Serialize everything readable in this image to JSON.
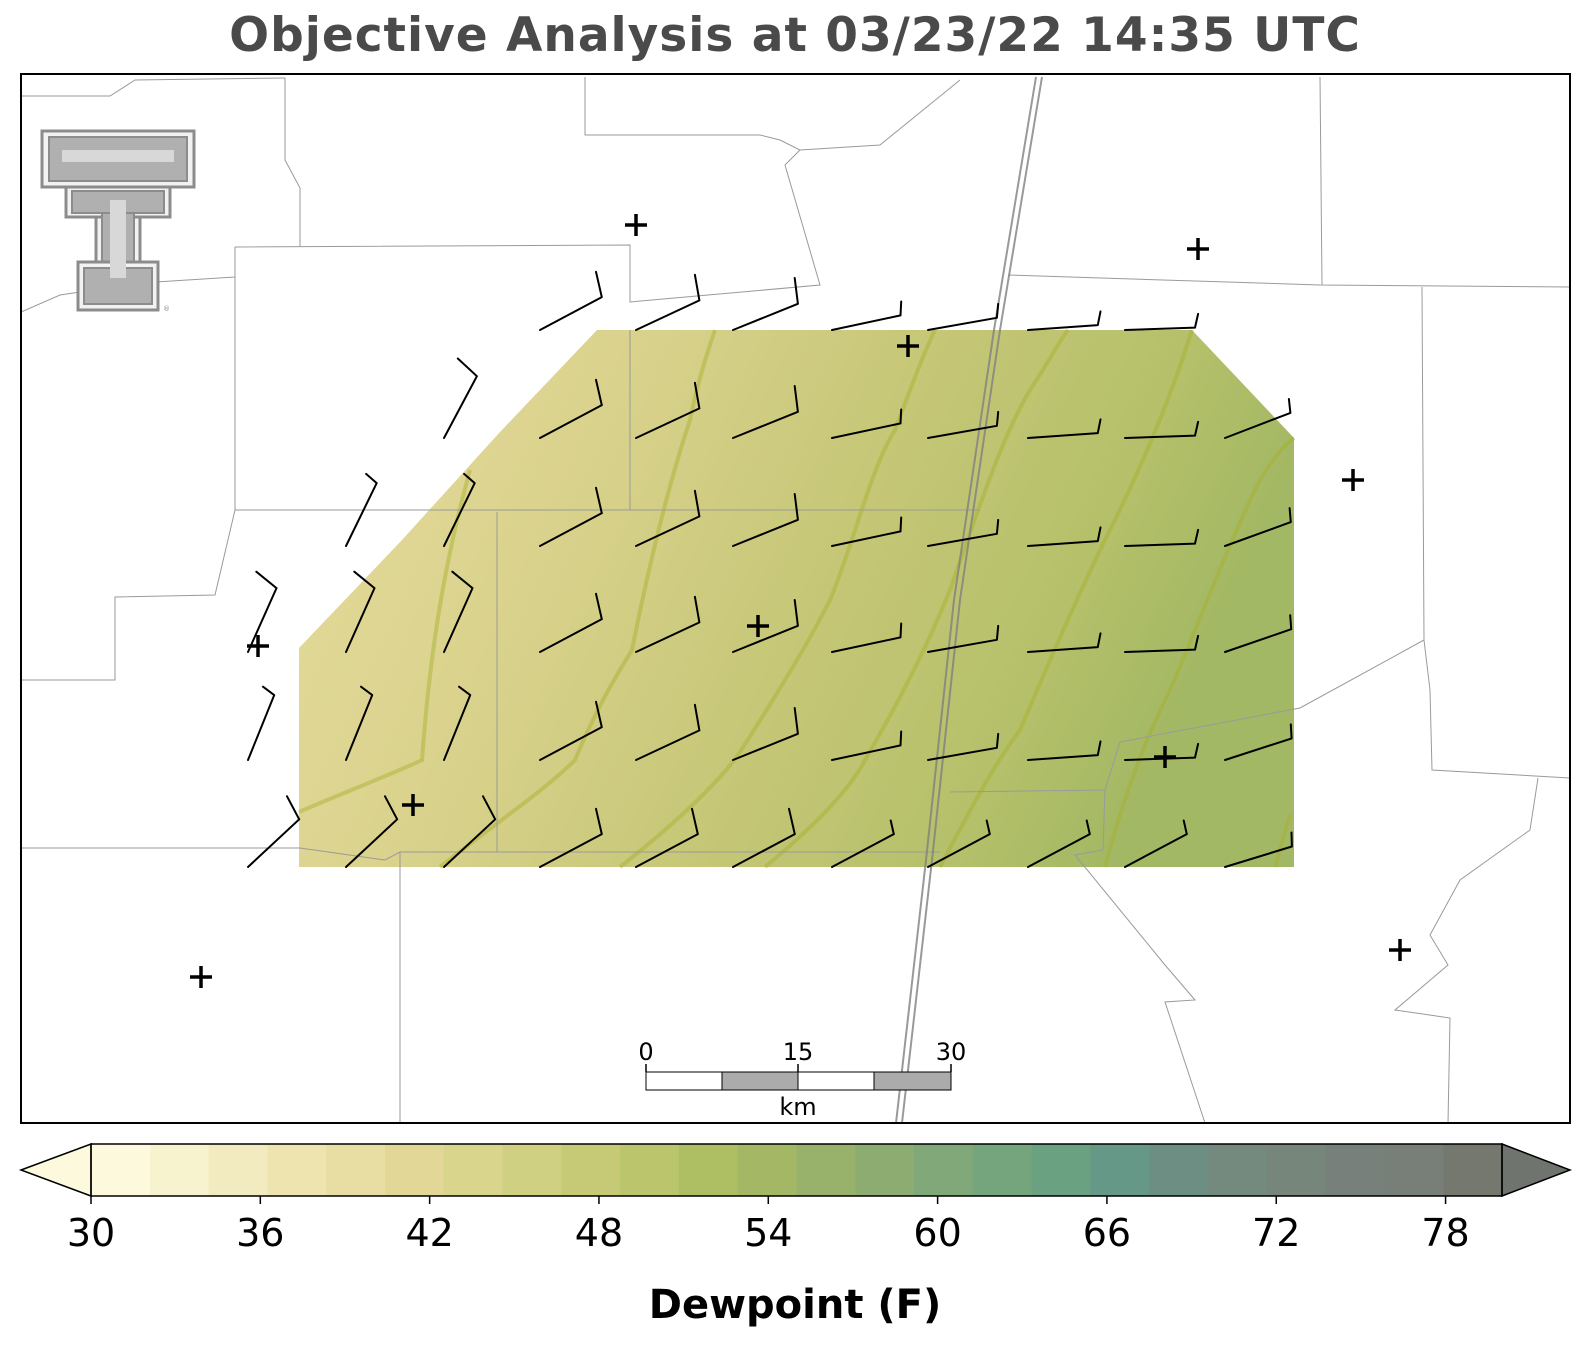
{
  "title": "Objective Analysis at 03/23/22 14:35 UTC",
  "colorbar": {
    "label": "Dewpoint (F)",
    "min": 30,
    "max": 80,
    "step": 2,
    "tick_labels": [
      "30",
      "36",
      "42",
      "48",
      "54",
      "60",
      "66",
      "72",
      "78"
    ],
    "tick_values": [
      30,
      36,
      42,
      48,
      54,
      60,
      66,
      72,
      78
    ],
    "colors": [
      "#fdf9dc",
      "#f8f3cf",
      "#f2ebbf",
      "#ede4b0",
      "#e8dea3",
      "#e2d797",
      "#d9d58c",
      "#cfd081",
      "#c6ca77",
      "#bac56c",
      "#aebe63",
      "#a3b765",
      "#98b16b",
      "#8cac72",
      "#80a878",
      "#74a57d",
      "#6aa181",
      "#659887",
      "#6d8f83",
      "#748a7f",
      "#76867b",
      "#77807a",
      "#787f78",
      "#74786f"
    ],
    "under_color": "#fdf9dc",
    "over_color": "#6f756e"
  },
  "scale_bar": {
    "labels": [
      "0",
      "15",
      "30"
    ],
    "unit": "km"
  },
  "logo": {
    "icon": "texas-tech-double-t-logo-icon"
  },
  "map_features": {
    "station_marker_icon": "plus-icon",
    "wind_barb_icon": "wind-barb-icon",
    "boundary_color": "#9a9a9a",
    "highway_color": "#7f7f7f",
    "contour_color": "#a6b02a"
  }
}
